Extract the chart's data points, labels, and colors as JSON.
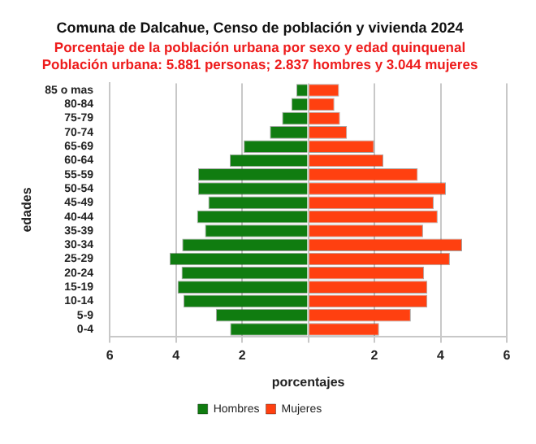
{
  "chart_data": {
    "type": "bar",
    "orientation": "horizontal",
    "stacked": true,
    "title": "Comuna de Dalcahue, Censo de población y vivienda 2024",
    "subtitle": "Porcentaje de la población urbana por sexo y edad quinquenal\nPoblación urbana: 5.881 personas; 2.837 hombres y 3.044 mujeres",
    "xlabel": "porcentajes",
    "ylabel": "edades",
    "categories": [
      "85 o mas",
      "80-84",
      "75-79",
      "70-74",
      "65-69",
      "60-64",
      "55-59",
      "50-54",
      "45-49",
      "40-44",
      "35-39",
      "30-34",
      "25-29",
      "20-24",
      "15-19",
      "10-14",
      "5-9",
      "0-4"
    ],
    "series": [
      {
        "name": "Hombres",
        "color": "#107c10",
        "values": [
          -0.36,
          -0.51,
          -0.79,
          -1.16,
          -1.95,
          -2.37,
          -3.33,
          -3.33,
          -3.02,
          -3.36,
          -3.12,
          -3.81,
          -4.19,
          -3.83,
          -3.95,
          -3.77,
          -2.79,
          -2.36
        ]
      },
      {
        "name": "Mujeres",
        "color": "#ff4010",
        "values": [
          0.93,
          0.79,
          0.96,
          1.17,
          1.99,
          2.27,
          3.31,
          4.16,
          3.79,
          3.91,
          3.47,
          4.65,
          4.28,
          3.5,
          3.6,
          3.6,
          3.1,
          2.14
        ]
      }
    ],
    "xlim": [
      -6,
      6
    ],
    "xticks": [
      {
        "value": -6,
        "label": "6"
      },
      {
        "value": -4,
        "label": "4"
      },
      {
        "value": -2,
        "label": "2"
      },
      {
        "value": 0,
        "label": null
      },
      2,
      4,
      6
    ],
    "grid": "x",
    "legend": "bottom"
  }
}
